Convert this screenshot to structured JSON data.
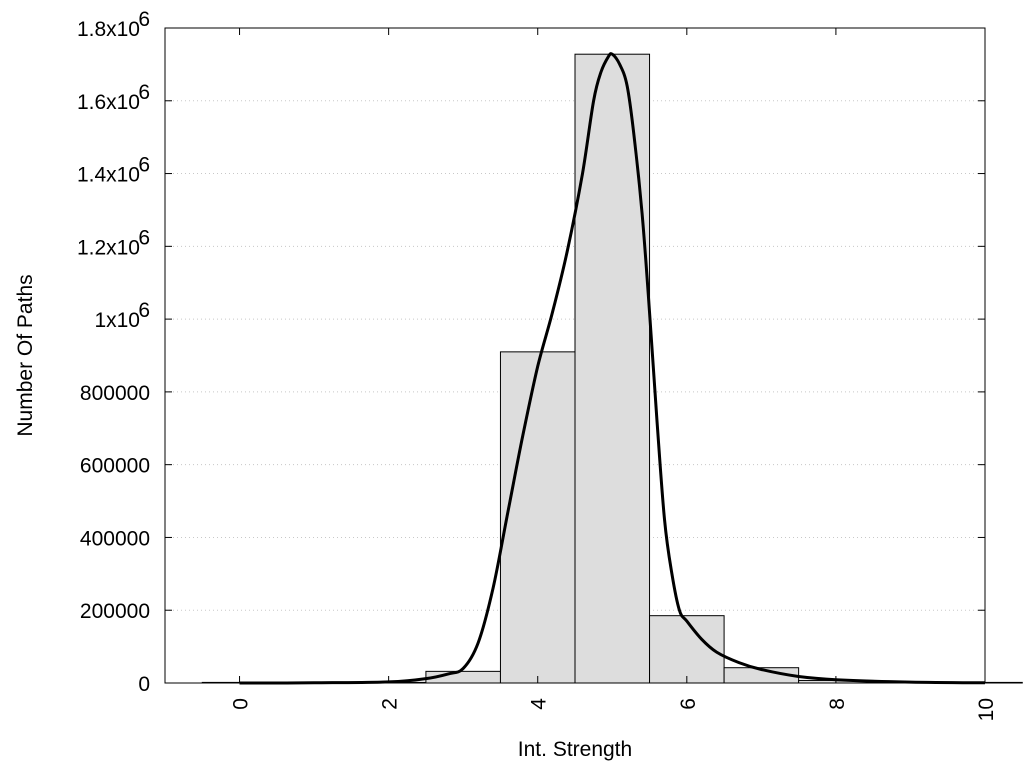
{
  "chart_data": {
    "type": "bar",
    "xlabel": "Int. Strength",
    "ylabel": "Number Of Paths",
    "xlim": [
      -1,
      10
    ],
    "ylim": [
      0,
      1800000
    ],
    "x_ticks": [
      {
        "value": 0,
        "label": "0"
      },
      {
        "value": 2,
        "label": "2"
      },
      {
        "value": 4,
        "label": "4"
      },
      {
        "value": 6,
        "label": "6"
      },
      {
        "value": 8,
        "label": "8"
      },
      {
        "value": 10,
        "label": "10"
      }
    ],
    "y_ticks": [
      {
        "value": 0,
        "label": "0",
        "sup": ""
      },
      {
        "value": 200000,
        "label": "200000",
        "sup": ""
      },
      {
        "value": 400000,
        "label": "400000",
        "sup": ""
      },
      {
        "value": 600000,
        "label": "600000",
        "sup": ""
      },
      {
        "value": 800000,
        "label": "800000",
        "sup": ""
      },
      {
        "value": 1000000,
        "label": "1x10",
        "sup": "6"
      },
      {
        "value": 1200000,
        "label": "1.2x10",
        "sup": "6"
      },
      {
        "value": 1400000,
        "label": "1.4x10",
        "sup": "6"
      },
      {
        "value": 1600000,
        "label": "1.6x10",
        "sup": "6"
      },
      {
        "value": 1800000,
        "label": "1.8x10",
        "sup": "6"
      }
    ],
    "grid": "horizontal dotted",
    "bar_color": "#dddddd",
    "bin_width": 1,
    "bars": [
      {
        "x": 0,
        "value": 0
      },
      {
        "x": 1,
        "value": 0
      },
      {
        "x": 2,
        "value": 0
      },
      {
        "x": 3,
        "value": 32000
      },
      {
        "x": 4,
        "value": 910000
      },
      {
        "x": 5,
        "value": 1728000
      },
      {
        "x": 6,
        "value": 185000
      },
      {
        "x": 7,
        "value": 42000
      },
      {
        "x": 8,
        "value": 7000
      },
      {
        "x": 9,
        "value": 1500
      },
      {
        "x": 10,
        "value": 300
      }
    ],
    "fit_curve": [
      [
        0,
        0
      ],
      [
        1,
        500
      ],
      [
        2,
        3000
      ],
      [
        2.5,
        12000
      ],
      [
        2.8,
        25000
      ],
      [
        3.0,
        40000
      ],
      [
        3.2,
        110000
      ],
      [
        3.4,
        260000
      ],
      [
        3.6,
        470000
      ],
      [
        3.8,
        680000
      ],
      [
        4.0,
        870000
      ],
      [
        4.2,
        1020000
      ],
      [
        4.4,
        1190000
      ],
      [
        4.6,
        1400000
      ],
      [
        4.75,
        1600000
      ],
      [
        4.85,
        1680000
      ],
      [
        4.95,
        1722000
      ],
      [
        5.0,
        1728000
      ],
      [
        5.1,
        1700000
      ],
      [
        5.2,
        1640000
      ],
      [
        5.3,
        1490000
      ],
      [
        5.4,
        1290000
      ],
      [
        5.5,
        1020000
      ],
      [
        5.6,
        720000
      ],
      [
        5.7,
        450000
      ],
      [
        5.8,
        300000
      ],
      [
        5.9,
        200000
      ],
      [
        6.0,
        170000
      ],
      [
        6.2,
        120000
      ],
      [
        6.4,
        85000
      ],
      [
        6.7,
        56000
      ],
      [
        7.0,
        37000
      ],
      [
        7.5,
        18000
      ],
      [
        8.0,
        9000
      ],
      [
        9.0,
        2500
      ],
      [
        10.0,
        500
      ]
    ]
  }
}
